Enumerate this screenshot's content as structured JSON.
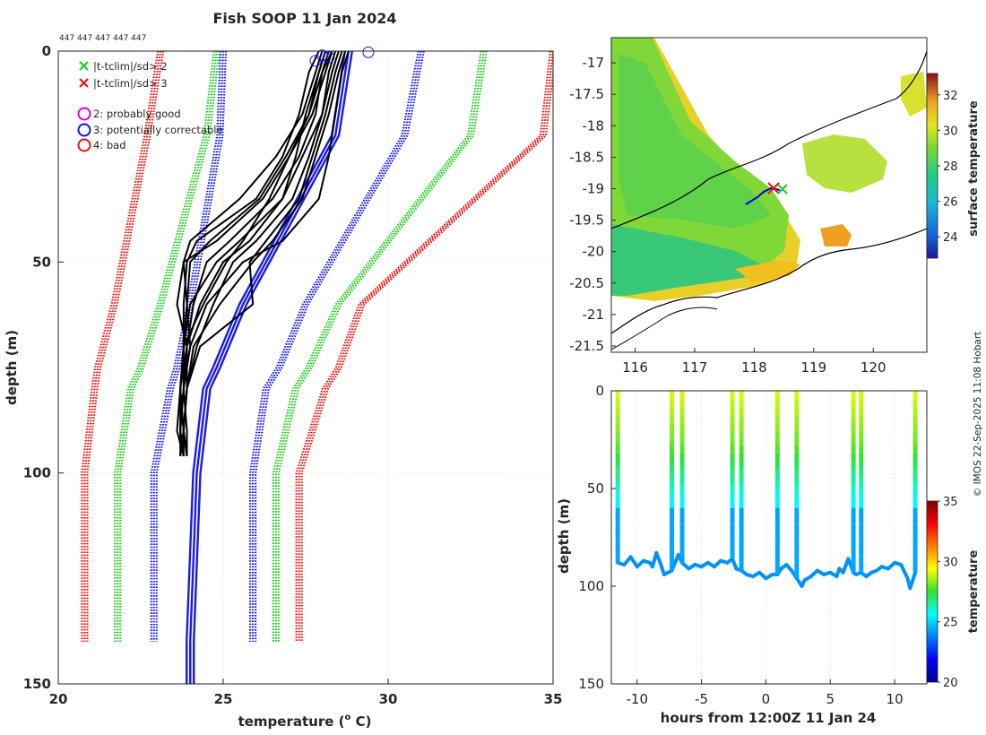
{
  "chart_data": [
    {
      "type": "line",
      "title": "Fish SOOP 11 Jan 2024",
      "top_annotation": "447 447 447 447 447",
      "xlabel": "temperature (",
      "xlabel_sup": "o",
      "xlabel_end": " C)",
      "ylabel": "depth (m)",
      "xlim": [
        20,
        35
      ],
      "ylim": [
        150,
        0
      ],
      "xticks": [
        "20",
        "25",
        "30",
        "35"
      ],
      "yticks": [
        "0",
        "50",
        "100",
        "150"
      ],
      "grid": true,
      "legend_placement": "top-left",
      "legend": [
        {
          "label": "|t-tclim|/sd> 2",
          "color": "#22cc22",
          "marker": "x"
        },
        {
          "label": "|t-tclim|/sd> 3",
          "color": "#ee1111",
          "marker": "x"
        },
        {
          "label": "2: probably good",
          "color": "#dd00dd",
          "marker": "o"
        },
        {
          "label": "3: potentially correctable",
          "color": "#1111ee",
          "marker": "o"
        },
        {
          "label": "4: bad",
          "color": "#ee1111",
          "marker": "o"
        }
      ],
      "climatology_depths": [
        0,
        20,
        60,
        75,
        80,
        100,
        140
      ],
      "climatology_series": [
        {
          "name": "clim mean",
          "color": "#1a1aee",
          "style": "solid",
          "values": [
            28.8,
            28.4,
            25.6,
            24.8,
            24.5,
            24.2,
            24.0
          ]
        },
        {
          "name": "clim -1sd",
          "color": "#1a1aee",
          "style": "dotted",
          "values": [
            25.0,
            24.9,
            24.0,
            23.6,
            23.4,
            22.9,
            22.9
          ]
        },
        {
          "name": "clim +1sd",
          "color": "#1a1aee",
          "style": "dotted",
          "values": [
            31.0,
            30.5,
            27.5,
            26.7,
            26.3,
            25.9,
            25.9
          ]
        },
        {
          "name": "clim -2sd",
          "color": "#22cc22",
          "style": "dotted",
          "values": [
            24.8,
            24.5,
            23.1,
            22.5,
            22.2,
            21.8,
            21.8
          ]
        },
        {
          "name": "clim +2sd",
          "color": "#22cc22",
          "style": "dotted",
          "values": [
            32.9,
            32.5,
            28.5,
            27.6,
            27.2,
            26.6,
            26.6
          ]
        },
        {
          "name": "clim -3sd",
          "color": "#ee1111",
          "style": "dotted",
          "values": [
            23.1,
            22.7,
            21.7,
            21.2,
            21.1,
            20.8,
            20.8
          ]
        },
        {
          "name": "clim +3sd",
          "color": "#ee1111",
          "style": "dotted",
          "values": [
            35.0,
            34.7,
            29.2,
            28.5,
            28.1,
            27.3,
            27.3
          ]
        }
      ],
      "profiles": {
        "color": "#000000",
        "count": 12,
        "depths": [
          0,
          5,
          15,
          25,
          35,
          45,
          50,
          60,
          70,
          80,
          90,
          96
        ],
        "values": [
          [
            28.8,
            28.6,
            28.4,
            28.2,
            27.9,
            26.8,
            25.6,
            24.5,
            24.0,
            23.8,
            23.7,
            23.7
          ],
          [
            28.5,
            28.3,
            28.0,
            27.4,
            26.8,
            25.8,
            25.0,
            24.3,
            23.9,
            23.8,
            23.7,
            23.8
          ],
          [
            28.3,
            28.1,
            27.7,
            27.0,
            26.2,
            24.8,
            23.8,
            23.6,
            23.9,
            23.7,
            23.6,
            23.8
          ],
          [
            28.1,
            27.9,
            27.5,
            27.2,
            26.8,
            25.5,
            24.8,
            24.0,
            23.8,
            23.8,
            23.9,
            23.9
          ],
          [
            27.9,
            27.6,
            27.3,
            26.8,
            26.0,
            24.2,
            23.9,
            23.8,
            23.8,
            23.7,
            23.8,
            23.7
          ],
          [
            28.4,
            28.2,
            28.0,
            27.6,
            27.1,
            26.0,
            25.3,
            24.7,
            24.2,
            23.9,
            23.8,
            23.9
          ],
          [
            28.2,
            28.0,
            27.8,
            27.3,
            26.5,
            25.2,
            24.5,
            24.1,
            23.9,
            23.9,
            23.8,
            23.9
          ],
          [
            28.0,
            27.8,
            27.4,
            26.6,
            25.5,
            24.0,
            23.8,
            23.9,
            24.0,
            23.8,
            23.7,
            23.8
          ],
          [
            28.6,
            28.4,
            28.1,
            27.7,
            27.3,
            26.3,
            25.8,
            25.9,
            24.3,
            23.9,
            23.8,
            23.8
          ],
          [
            28.3,
            28.0,
            27.6,
            26.9,
            26.1,
            24.6,
            24.0,
            23.9,
            23.8,
            23.7,
            23.7,
            23.8
          ],
          [
            28.7,
            28.5,
            28.2,
            27.8,
            27.4,
            26.5,
            25.9,
            24.9,
            24.1,
            23.9,
            23.8,
            23.9
          ],
          [
            28.1,
            27.9,
            27.6,
            27.0,
            26.4,
            25.6,
            25.1,
            24.4,
            23.8,
            23.7,
            23.8,
            23.7
          ]
        ]
      },
      "surface_flags": [
        {
          "temperature": 27.8,
          "depth": 2.3,
          "flag": 3
        },
        {
          "temperature": 28.0,
          "depth": 1.0,
          "flag": 3
        },
        {
          "temperature": 28.2,
          "depth": 1.5,
          "flag": 3
        },
        {
          "temperature": 29.4,
          "depth": 0.3,
          "flag": 3
        }
      ]
    },
    {
      "type": "heatmap",
      "title": "",
      "xlim": [
        115.6,
        120.9
      ],
      "ylim": [
        -21.6,
        -16.6
      ],
      "xticks": [
        "116",
        "117",
        "118",
        "119",
        "120"
      ],
      "yticks": [
        "-17",
        "-17.5",
        "-18",
        "-18.5",
        "-19",
        "-19.5",
        "-20",
        "-20.5",
        "-21",
        "-21.5"
      ],
      "ytick_values": [
        -17,
        -17.5,
        -18,
        -18.5,
        -19,
        -19.5,
        -20,
        -20.5,
        -21,
        -21.5
      ],
      "colorbar_label": "surface temperature",
      "colorbar_ticks": [
        "24",
        "26",
        "28",
        "30",
        "32"
      ],
      "colorbar_range": [
        22.8,
        33.2
      ],
      "track_points": [
        [
          117.9,
          -19.2
        ],
        [
          118.1,
          -19.1
        ],
        [
          118.2,
          -19.05
        ],
        [
          118.3,
          -19.05
        ],
        [
          118.4,
          -19.1
        ]
      ]
    },
    {
      "type": "scatter",
      "xlabel": "hours from 12:00Z 11 Jan 24",
      "ylabel": "depth (m)",
      "xlim": [
        -12,
        12.5
      ],
      "ylim": [
        150,
        0
      ],
      "xticks": [
        "-10",
        "-5",
        "0",
        "5",
        "10"
      ],
      "yticks": [
        "0",
        "50",
        "100",
        "150"
      ],
      "colorbar_label": "temperature",
      "colorbar_ticks": [
        "20",
        "25",
        "30",
        "35"
      ],
      "colorbar_range": [
        20,
        35
      ],
      "dives": [
        -11.5,
        -7.3,
        -6.5,
        -2.6,
        -1.9,
        0.9,
        2.4,
        6.8,
        7.4,
        11.6
      ],
      "bottom_profile": {
        "hours": [
          -11.5,
          -11.0,
          -10.5,
          -10.0,
          -9.5,
          -9.0,
          -8.8,
          -8.5,
          -8.2,
          -7.9,
          -7.3,
          -6.8,
          -6.5,
          -6.0,
          -5.5,
          -5.0,
          -4.5,
          -4.0,
          -3.5,
          -3.0,
          -2.6,
          -2.3,
          -1.9,
          -1.5,
          -1.0,
          -0.5,
          0.0,
          0.5,
          0.9,
          1.2,
          1.6,
          2.0,
          2.4,
          2.8,
          3.0,
          3.5,
          4.0,
          4.5,
          5.0,
          5.5,
          5.7,
          6.0,
          6.4,
          6.8,
          7.0,
          7.4,
          7.8,
          8.2,
          8.6,
          9.0,
          9.5,
          10.0,
          10.5,
          11.0,
          11.2,
          11.6
        ],
        "depths": [
          88,
          89,
          85,
          90,
          87,
          88,
          90,
          83,
          88,
          94,
          92,
          84,
          88,
          91,
          89,
          90,
          88,
          90,
          87,
          88,
          86,
          91,
          92,
          94,
          95,
          93,
          96,
          94,
          94,
          91,
          89,
          92,
          96,
          100,
          97,
          95,
          92,
          94,
          93,
          95,
          91,
          93,
          86,
          93,
          94,
          93,
          95,
          93,
          92,
          90,
          91,
          88,
          89,
          96,
          101,
          93
        ]
      }
    }
  ],
  "watermark": "© IMOS 22-Sep-2025 11:08 Hobart"
}
